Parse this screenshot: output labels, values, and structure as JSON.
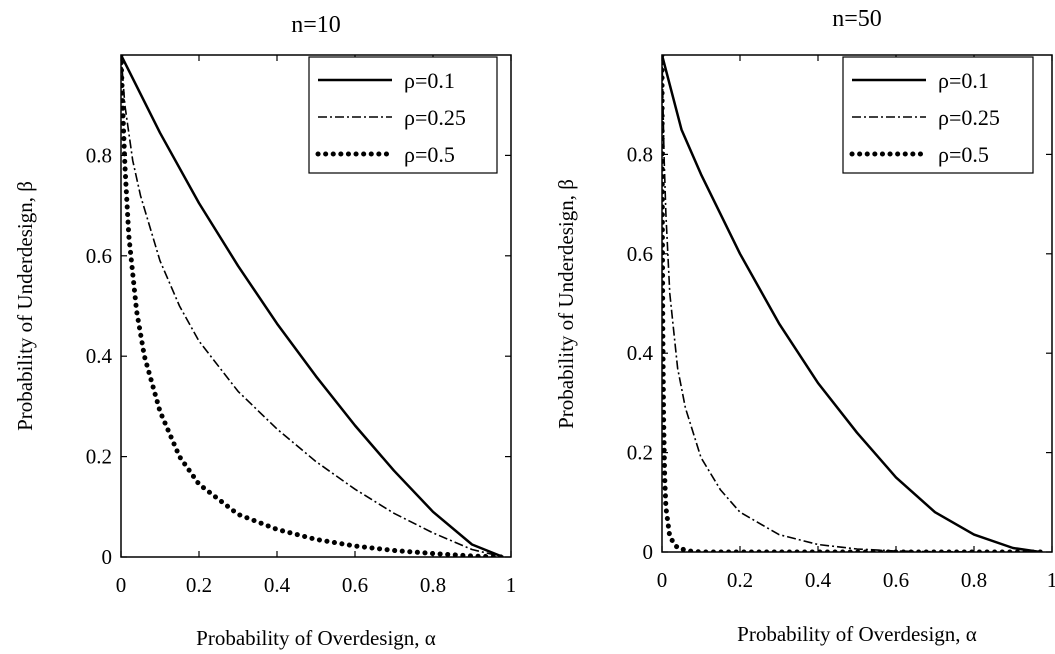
{
  "chart_data": [
    {
      "type": "line",
      "title": "n=10",
      "xlabel": "Probability of Overdesign, α",
      "ylabel": "Probability of Underdesign, β",
      "xlim": [
        0,
        1
      ],
      "ylim": [
        0,
        1
      ],
      "xticks": [
        "0",
        "0.2",
        "0.4",
        "0.6",
        "0.8",
        "1"
      ],
      "yticks": [
        "0",
        "0.2",
        "0.4",
        "0.6",
        "0.8"
      ],
      "legend_position": "top-right",
      "grid": false,
      "series": [
        {
          "name": "ρ=0.1",
          "style": "solid",
          "x": [
            0,
            0.1,
            0.2,
            0.3,
            0.4,
            0.5,
            0.6,
            0.7,
            0.8,
            0.9,
            0.98
          ],
          "y": [
            1.0,
            0.845,
            0.705,
            0.58,
            0.465,
            0.36,
            0.262,
            0.172,
            0.09,
            0.025,
            0.0
          ]
        },
        {
          "name": "ρ=0.25",
          "style": "dashdot",
          "x": [
            0,
            0.01,
            0.03,
            0.05,
            0.1,
            0.15,
            0.2,
            0.3,
            0.4,
            0.5,
            0.6,
            0.7,
            0.8,
            0.9,
            0.98
          ],
          "y": [
            1.0,
            0.9,
            0.79,
            0.72,
            0.59,
            0.5,
            0.43,
            0.33,
            0.255,
            0.19,
            0.135,
            0.087,
            0.048,
            0.015,
            0.0
          ]
        },
        {
          "name": "ρ=0.5",
          "style": "dotted",
          "x": [
            0,
            0.005,
            0.01,
            0.02,
            0.04,
            0.06,
            0.1,
            0.15,
            0.2,
            0.3,
            0.4,
            0.5,
            0.6,
            0.7,
            0.8,
            0.9,
            0.98
          ],
          "y": [
            1.0,
            0.88,
            0.78,
            0.64,
            0.49,
            0.4,
            0.29,
            0.2,
            0.145,
            0.085,
            0.055,
            0.035,
            0.022,
            0.013,
            0.007,
            0.002,
            0.0
          ]
        }
      ]
    },
    {
      "type": "line",
      "title": "n=50",
      "xlabel": "Probability of Overdesign, α",
      "ylabel": "Probability of Underdesign, β",
      "xlim": [
        0,
        1
      ],
      "ylim": [
        0,
        1
      ],
      "xticks": [
        "0",
        "0.2",
        "0.4",
        "0.6",
        "0.8",
        "1"
      ],
      "yticks": [
        "0",
        "0.2",
        "0.4",
        "0.6",
        "0.8"
      ],
      "legend_position": "top-right",
      "grid": false,
      "series": [
        {
          "name": "ρ=0.1",
          "style": "solid",
          "x": [
            0,
            0.05,
            0.1,
            0.2,
            0.3,
            0.4,
            0.5,
            0.6,
            0.7,
            0.8,
            0.9,
            0.97
          ],
          "y": [
            1.0,
            0.85,
            0.76,
            0.6,
            0.46,
            0.34,
            0.24,
            0.15,
            0.08,
            0.035,
            0.008,
            0.0
          ]
        },
        {
          "name": "ρ=0.25",
          "style": "dashdot",
          "x": [
            0,
            0.005,
            0.01,
            0.02,
            0.04,
            0.06,
            0.1,
            0.15,
            0.2,
            0.3,
            0.4,
            0.5,
            0.6,
            0.7,
            0.8
          ],
          "y": [
            1.0,
            0.8,
            0.68,
            0.52,
            0.37,
            0.29,
            0.19,
            0.125,
            0.08,
            0.035,
            0.015,
            0.006,
            0.002,
            0.0005,
            0.0
          ]
        },
        {
          "name": "ρ=0.5",
          "style": "dotted",
          "x": [
            0,
            0.001,
            0.002,
            0.004,
            0.007,
            0.01,
            0.02,
            0.04,
            0.07,
            0.1,
            0.2,
            0.4,
            0.6,
            0.8,
            0.97
          ],
          "y": [
            1.0,
            0.65,
            0.45,
            0.27,
            0.15,
            0.09,
            0.03,
            0.008,
            0.002,
            0.0,
            0.0,
            0.0,
            0.0,
            0.0,
            0.0
          ]
        }
      ]
    }
  ]
}
